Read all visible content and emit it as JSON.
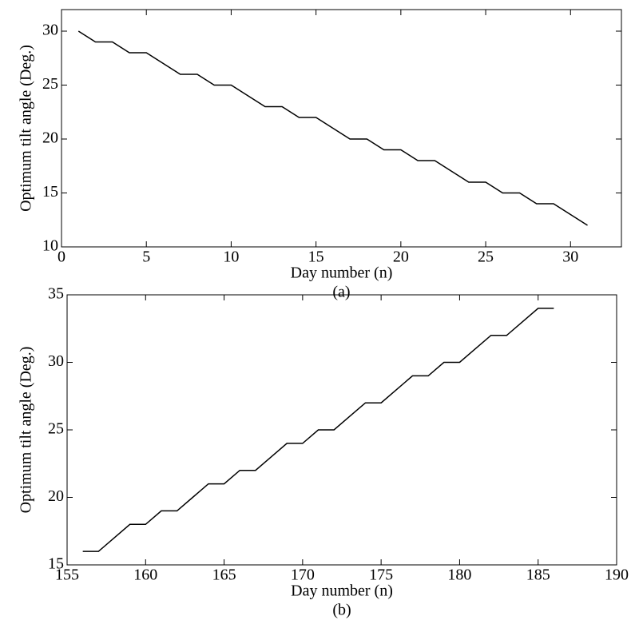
{
  "chart_data": [
    {
      "type": "line",
      "caption": "(a)",
      "xlabel": "Day number (n)",
      "ylabel": "Optimum tilt angle (Deg.)",
      "x": [
        1,
        2,
        3,
        4,
        5,
        6,
        7,
        8,
        9,
        10,
        11,
        12,
        13,
        14,
        15,
        16,
        17,
        18,
        19,
        20,
        21,
        22,
        23,
        24,
        25,
        26,
        27,
        28,
        29,
        30,
        31
      ],
      "series": [
        {
          "color": "#000000",
          "values": [
            30,
            29,
            29,
            28,
            28,
            27,
            26,
            26,
            25,
            25,
            24,
            23,
            23,
            22,
            22,
            21,
            20,
            20,
            19,
            19,
            18,
            18,
            17,
            16,
            16,
            15,
            15,
            14,
            14,
            13,
            12
          ]
        }
      ],
      "xlim": [
        0,
        33
      ],
      "xticks": [
        0,
        5,
        10,
        15,
        20,
        25,
        30
      ],
      "ylim": [
        10,
        32
      ],
      "yticks": [
        10,
        15,
        20,
        25,
        30
      ]
    },
    {
      "type": "line",
      "caption": "(b)",
      "xlabel": "Day number (n)",
      "ylabel": "Optimum tilt angle (Deg.)",
      "x": [
        156,
        157,
        158,
        159,
        160,
        161,
        162,
        163,
        164,
        165,
        166,
        167,
        168,
        169,
        170,
        171,
        172,
        173,
        174,
        175,
        176,
        177,
        178,
        179,
        180,
        181,
        182,
        183,
        184,
        185,
        186
      ],
      "series": [
        {
          "color": "#000000",
          "values": [
            16,
            16,
            17,
            18,
            18,
            19,
            19,
            20,
            21,
            21,
            22,
            22,
            23,
            24,
            24,
            25,
            25,
            26,
            27,
            27,
            28,
            29,
            29,
            30,
            30,
            31,
            32,
            32,
            33,
            34,
            34
          ]
        }
      ],
      "xlim": [
        155,
        190
      ],
      "xticks": [
        155,
        160,
        165,
        170,
        175,
        180,
        185,
        190
      ],
      "ylim": [
        15,
        35
      ],
      "yticks": [
        15,
        20,
        25,
        30,
        35
      ]
    }
  ]
}
